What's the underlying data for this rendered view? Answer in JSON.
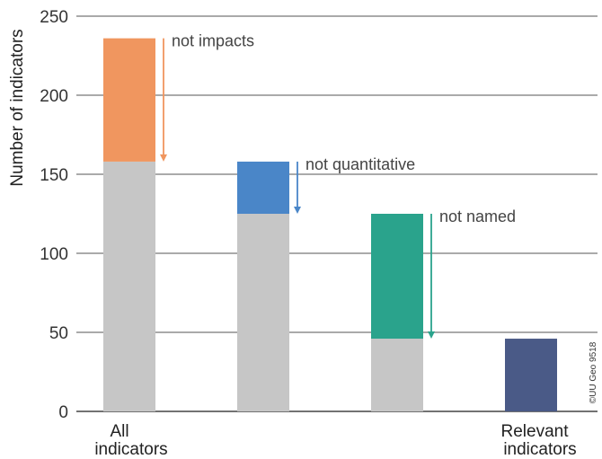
{
  "chart_data": {
    "type": "bar",
    "title": "",
    "xlabel": "",
    "ylabel": "Number of indicators",
    "ylim": [
      0,
      250
    ],
    "yticks": [
      0,
      50,
      100,
      150,
      200,
      250
    ],
    "grid": true,
    "categories": [
      [
        "All",
        "indicators"
      ],
      [
        "",
        ""
      ],
      [
        "",
        ""
      ],
      [
        "Relevant",
        "indicators"
      ]
    ],
    "series": [
      {
        "values": [
          158,
          125,
          46,
          0
        ],
        "color": "#c6c6c6"
      },
      {
        "values": [
          78,
          33,
          79,
          46
        ],
        "colors": [
          "#f0965f",
          "#4a86c8",
          "#2aa38c",
          "#4a5a87"
        ]
      }
    ],
    "annotations": [
      {
        "text": "not impacts",
        "bar": 0,
        "from": 236,
        "to": 158,
        "color": "#f0965f"
      },
      {
        "text": "not quantitative",
        "bar": 1,
        "from": 158,
        "to": 125,
        "color": "#4a86c8"
      },
      {
        "text": "not named",
        "bar": 2,
        "from": 125,
        "to": 46,
        "color": "#2aa38c"
      }
    ],
    "credit": "©UU Geo 9518"
  }
}
